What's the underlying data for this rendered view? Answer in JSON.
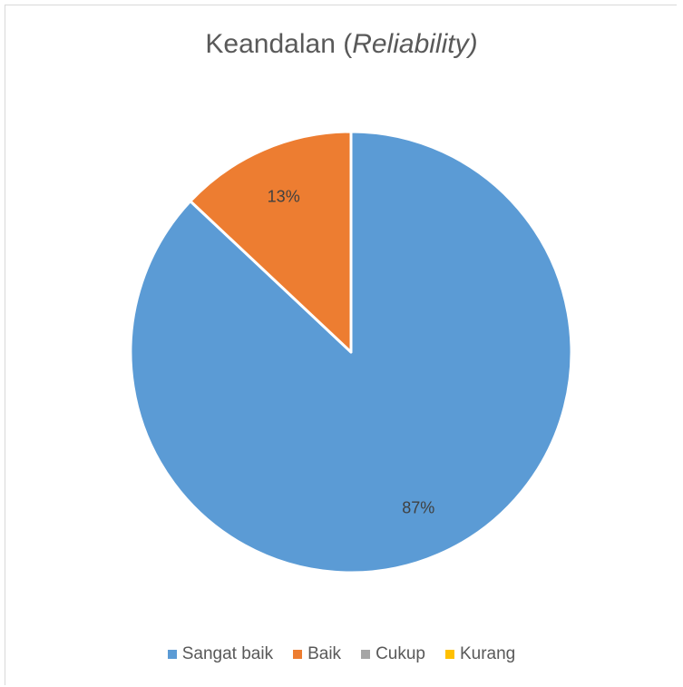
{
  "chart_data": {
    "type": "pie",
    "title_main": "Keandalan (",
    "title_italic": "Reliability)",
    "categories": [
      "Sangat baik",
      "Baik",
      "Cukup",
      "Kurang"
    ],
    "values": [
      87,
      13,
      0,
      0
    ],
    "data_labels": [
      "87%",
      "13%",
      "",
      ""
    ],
    "colors": [
      "#5b9bd5",
      "#ed7d31",
      "#a5a5a5",
      "#ffc000"
    ],
    "legend_position": "bottom"
  }
}
